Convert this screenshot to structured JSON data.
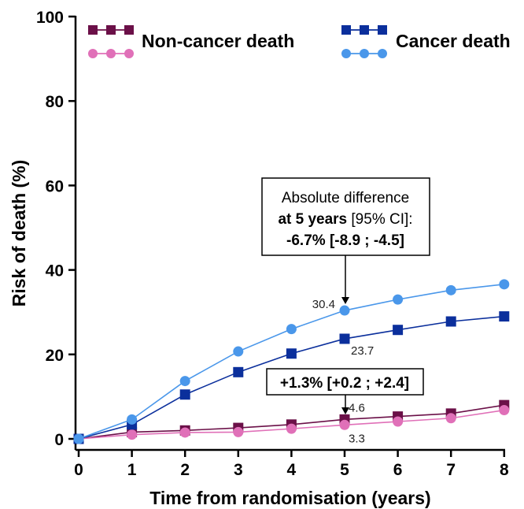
{
  "chart_data": {
    "type": "line",
    "xlabel": "Time from randomisation (years)",
    "ylabel": "Risk of death (%)",
    "x": [
      0,
      1,
      2,
      3,
      4,
      5,
      6,
      7,
      8
    ],
    "xlim": [
      0,
      8
    ],
    "ylim": [
      0,
      100
    ],
    "xticks": [
      "0",
      "1",
      "2",
      "3",
      "4",
      "5",
      "6",
      "7",
      "8"
    ],
    "yticks": [
      "0",
      "20",
      "40",
      "60",
      "80",
      "100"
    ],
    "grid": false,
    "legend_position": "top",
    "legend": {
      "noncancer_label": "Non-cancer death",
      "cancer_label": "Cancer death"
    },
    "series": [
      {
        "key": "noncancer_square",
        "group": "Non-cancer death",
        "marker": "square",
        "color": "#6b1048",
        "values": [
          0,
          1.6,
          2.0,
          2.6,
          3.4,
          4.6,
          5.3,
          6.0,
          8.0
        ]
      },
      {
        "key": "noncancer_circle",
        "group": "Non-cancer death",
        "marker": "circle",
        "color": "#e070b8",
        "values": [
          0,
          1.0,
          1.5,
          1.6,
          2.4,
          3.3,
          4.1,
          4.9,
          6.8
        ]
      },
      {
        "key": "cancer_square",
        "group": "Cancer death",
        "marker": "square",
        "color": "#0b2f9c",
        "values": [
          0,
          3.4,
          10.5,
          15.8,
          20.2,
          23.7,
          25.8,
          27.8,
          29.0
        ]
      },
      {
        "key": "cancer_circle",
        "group": "Cancer death",
        "marker": "circle",
        "color": "#4a97ea",
        "values": [
          0,
          4.6,
          13.7,
          20.7,
          26.0,
          30.4,
          33.0,
          35.2,
          36.6
        ]
      }
    ],
    "data_labels": [
      {
        "text": "30.4",
        "x": 5,
        "y": 30.4
      },
      {
        "text": "23.7",
        "x": 5,
        "y": 23.7
      },
      {
        "text": "4.6",
        "x": 5,
        "y": 4.6
      },
      {
        "text": "3.3",
        "x": 5,
        "y": 3.3
      }
    ],
    "annotations": {
      "cancer_box": {
        "line1": "Absolute difference",
        "line2_bold": "at 5 years",
        "line2_rest": " [95% CI]:",
        "line3": "-6.7% [-8.9 ; -4.5]"
      },
      "noncancer_box": {
        "text": "+1.3% [+0.2 ; +2.4]"
      }
    }
  }
}
